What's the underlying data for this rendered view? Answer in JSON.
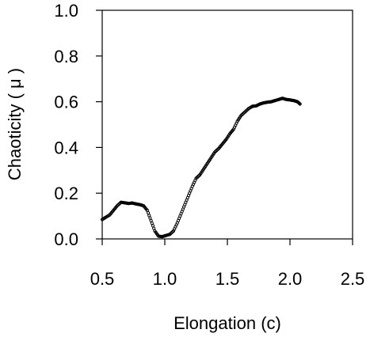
{
  "chart_data": {
    "type": "scatter",
    "title": "",
    "xlabel": "Elongation (c)",
    "ylabel": "Chaoticity ( μ )",
    "xlim": [
      0.5,
      2.5
    ],
    "ylim": [
      0.0,
      1.0
    ],
    "xticks": [
      0.5,
      1.0,
      1.5,
      2.0,
      2.5
    ],
    "xtick_labels": [
      "0.5",
      "1.0",
      "1.5",
      "2.0",
      "2.5"
    ],
    "yticks": [
      0.0,
      0.2,
      0.4,
      0.6,
      0.8,
      1.0
    ],
    "ytick_labels": [
      "0.0",
      "0.2",
      "0.4",
      "0.6",
      "0.8",
      "1.0"
    ],
    "grid": false,
    "legend": "none",
    "marker_color": "#000000",
    "series": [
      {
        "x": [
          0.5,
          0.53,
          0.56,
          0.59,
          0.62,
          0.65,
          0.68,
          0.71,
          0.74,
          0.77,
          0.8,
          0.83,
          0.86,
          0.89,
          0.92,
          0.95,
          0.98,
          1.01,
          1.04,
          1.07,
          1.1,
          1.13,
          1.16,
          1.19,
          1.22,
          1.25,
          1.28,
          1.31,
          1.34,
          1.37,
          1.4,
          1.43,
          1.46,
          1.49,
          1.52,
          1.55,
          1.58,
          1.61,
          1.64,
          1.67,
          1.7,
          1.73,
          1.76,
          1.79,
          1.82,
          1.85,
          1.88,
          1.91,
          1.94,
          1.97,
          2.0,
          2.03,
          2.06,
          2.08
        ],
        "y": [
          0.085,
          0.095,
          0.105,
          0.125,
          0.145,
          0.16,
          0.158,
          0.155,
          0.157,
          0.153,
          0.15,
          0.145,
          0.125,
          0.08,
          0.035,
          0.012,
          0.01,
          0.015,
          0.02,
          0.035,
          0.07,
          0.11,
          0.15,
          0.19,
          0.23,
          0.265,
          0.28,
          0.305,
          0.33,
          0.355,
          0.38,
          0.395,
          0.415,
          0.435,
          0.46,
          0.48,
          0.515,
          0.54,
          0.555,
          0.57,
          0.58,
          0.582,
          0.59,
          0.595,
          0.598,
          0.6,
          0.605,
          0.61,
          0.615,
          0.61,
          0.608,
          0.605,
          0.6,
          0.59
        ]
      }
    ]
  }
}
